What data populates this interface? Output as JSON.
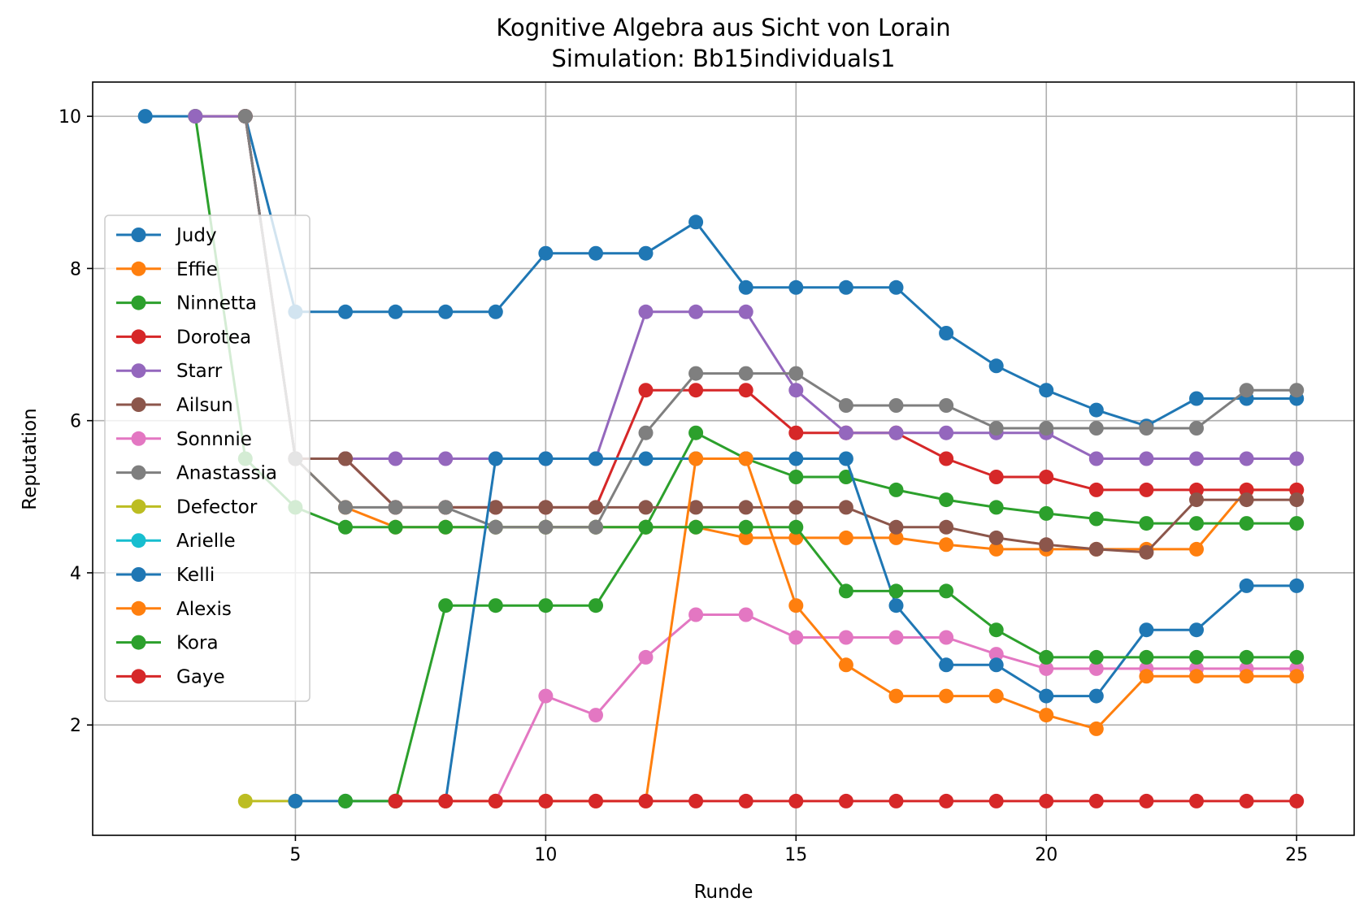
{
  "chart_data": {
    "type": "line",
    "title": "Kognitive Algebra aus Sicht von Lorain",
    "subtitle": "Simulation: Bb15individuals1",
    "xlabel": "Runde",
    "ylabel": "Reputation",
    "xlim": [
      0.95,
      26.15
    ],
    "ylim": [
      0.55,
      10.45
    ],
    "xticks": [
      5,
      10,
      15,
      20,
      25
    ],
    "yticks": [
      2,
      4,
      6,
      8,
      10
    ],
    "grid": true,
    "legend_position": "center-left",
    "series": [
      {
        "name": "Judy",
        "color": "#1f77b4",
        "x": [
          2,
          3,
          4,
          5,
          6,
          7,
          8,
          9,
          10,
          11,
          12,
          13,
          14,
          15,
          16,
          17,
          18,
          19,
          20,
          21,
          22,
          23,
          24,
          25
        ],
        "y": [
          10,
          10,
          10,
          7.43,
          7.43,
          7.43,
          7.43,
          7.43,
          8.2,
          8.2,
          8.2,
          8.61,
          7.75,
          7.75,
          7.75,
          7.75,
          7.15,
          6.72,
          6.4,
          6.14,
          5.93,
          6.29,
          6.29,
          6.29
        ]
      },
      {
        "name": "Effie",
        "color": "#ff7f0e",
        "x": [
          3,
          4,
          5,
          6,
          7,
          8,
          9,
          10,
          11,
          12,
          13,
          14,
          15,
          16,
          17,
          18,
          19,
          20,
          21,
          22,
          23,
          24,
          25
        ],
        "y": [
          10,
          10,
          5.5,
          4.86,
          4.6,
          4.6,
          4.6,
          4.6,
          4.6,
          4.6,
          4.6,
          4.46,
          4.46,
          4.46,
          4.46,
          4.37,
          4.31,
          4.31,
          4.31,
          4.31,
          4.31,
          5.09,
          5.09
        ]
      },
      {
        "name": "Ninnetta",
        "color": "#2ca02c",
        "x": [
          3,
          4,
          5,
          6,
          7,
          8,
          9,
          10,
          11,
          12,
          13,
          14,
          15,
          16,
          17,
          18,
          19,
          20,
          21,
          22,
          23,
          24,
          25
        ],
        "y": [
          10,
          5.5,
          4.86,
          4.6,
          4.6,
          4.6,
          4.6,
          4.6,
          4.6,
          4.6,
          5.84,
          5.5,
          5.26,
          5.26,
          5.09,
          4.96,
          4.86,
          4.78,
          4.71,
          4.65,
          4.65,
          4.65,
          4.65
        ]
      },
      {
        "name": "Dorotea",
        "color": "#d62728",
        "x": [
          4,
          5,
          6,
          7,
          8,
          9,
          10,
          11,
          12,
          13,
          14,
          15,
          16,
          17,
          18,
          19,
          20,
          21,
          22,
          23,
          24,
          25
        ],
        "y": [
          10,
          5.5,
          5.5,
          4.86,
          4.86,
          4.86,
          4.86,
          4.86,
          6.4,
          6.4,
          6.4,
          5.84,
          5.84,
          5.84,
          5.5,
          5.26,
          5.26,
          5.09,
          5.09,
          5.09,
          5.09,
          5.09
        ]
      },
      {
        "name": "Starr",
        "color": "#9467bd",
        "x": [
          3,
          4,
          5,
          6,
          7,
          8,
          9,
          10,
          11,
          12,
          13,
          14,
          15,
          16,
          17,
          18,
          19,
          20,
          21,
          22,
          23,
          24,
          25
        ],
        "y": [
          10,
          10,
          5.5,
          5.5,
          5.5,
          5.5,
          5.5,
          5.5,
          5.5,
          7.43,
          7.43,
          7.43,
          6.4,
          5.84,
          5.84,
          5.84,
          5.84,
          5.84,
          5.5,
          5.5,
          5.5,
          5.5,
          5.5
        ]
      },
      {
        "name": "Ailsun",
        "color": "#8c564b",
        "x": [
          4,
          5,
          6,
          7,
          8,
          9,
          10,
          11,
          12,
          13,
          14,
          15,
          16,
          17,
          18,
          19,
          20,
          21,
          22,
          23,
          24,
          25
        ],
        "y": [
          10,
          5.5,
          5.5,
          4.86,
          4.86,
          4.86,
          4.86,
          4.86,
          4.86,
          4.86,
          4.86,
          4.86,
          4.86,
          4.6,
          4.6,
          4.46,
          4.37,
          4.31,
          4.27,
          4.96,
          4.96,
          4.96
        ]
      },
      {
        "name": "Sonnnie",
        "color": "#e377c2",
        "x": [
          9,
          10,
          11,
          12,
          13,
          14,
          15,
          16,
          17,
          18,
          19,
          20,
          21,
          22,
          23,
          24,
          25
        ],
        "y": [
          1,
          2.38,
          2.13,
          2.89,
          3.45,
          3.45,
          3.15,
          3.15,
          3.15,
          3.15,
          2.93,
          2.74,
          2.74,
          2.74,
          2.74,
          2.74,
          2.74
        ]
      },
      {
        "name": "Anastassia",
        "color": "#7f7f7f",
        "x": [
          4,
          5,
          6,
          7,
          8,
          9,
          10,
          11,
          12,
          13,
          14,
          15,
          16,
          17,
          18,
          19,
          20,
          21,
          22,
          23,
          24,
          25
        ],
        "y": [
          10,
          5.5,
          4.86,
          4.86,
          4.86,
          4.6,
          4.6,
          4.6,
          5.84,
          6.62,
          6.62,
          6.62,
          6.2,
          6.2,
          6.2,
          5.9,
          5.9,
          5.9,
          5.9,
          5.9,
          6.4,
          6.4
        ]
      },
      {
        "name": "Defector",
        "color": "#bcbd22",
        "x": [
          4,
          5
        ],
        "y": [
          1,
          1
        ]
      },
      {
        "name": "Arielle",
        "color": "#17becf",
        "x": [],
        "y": []
      },
      {
        "name": "Kelli",
        "color": "#1f77b4",
        "x": [
          5,
          6,
          7,
          8,
          9,
          10,
          11,
          12,
          13,
          14,
          15,
          16,
          17,
          18,
          19,
          20,
          21,
          22,
          23,
          24,
          25
        ],
        "y": [
          1,
          1,
          1,
          1,
          5.5,
          5.5,
          5.5,
          5.5,
          5.5,
          5.5,
          5.5,
          5.5,
          3.57,
          2.79,
          2.79,
          2.38,
          2.38,
          3.25,
          3.25,
          3.83,
          3.83
        ]
      },
      {
        "name": "Alexis",
        "color": "#ff7f0e",
        "x": [
          7,
          8,
          9,
          10,
          11,
          12,
          13,
          14,
          15,
          16,
          17,
          18,
          19,
          20,
          21,
          22,
          23,
          24,
          25
        ],
        "y": [
          1,
          1,
          1,
          1,
          1,
          1,
          5.5,
          5.5,
          3.57,
          2.79,
          2.38,
          2.38,
          2.38,
          2.13,
          1.95,
          2.64,
          2.64,
          2.64,
          2.64
        ]
      },
      {
        "name": "Kora",
        "color": "#2ca02c",
        "x": [
          6,
          7,
          8,
          9,
          10,
          11,
          12,
          13,
          14,
          15,
          16,
          17,
          18,
          19,
          20,
          21,
          22,
          23,
          24,
          25
        ],
        "y": [
          1,
          1,
          3.57,
          3.57,
          3.57,
          3.57,
          4.6,
          4.6,
          4.6,
          4.6,
          3.76,
          3.76,
          3.76,
          3.25,
          2.89,
          2.89,
          2.89,
          2.89,
          2.89,
          2.89
        ]
      },
      {
        "name": "Gaye",
        "color": "#d62728",
        "x": [
          7,
          8,
          9,
          10,
          11,
          12,
          13,
          14,
          15,
          16,
          17,
          18,
          19,
          20,
          21,
          22,
          23,
          24,
          25
        ],
        "y": [
          1,
          1,
          1,
          1,
          1,
          1,
          1,
          1,
          1,
          1,
          1,
          1,
          1,
          1,
          1,
          1,
          1,
          1,
          1
        ]
      }
    ]
  }
}
